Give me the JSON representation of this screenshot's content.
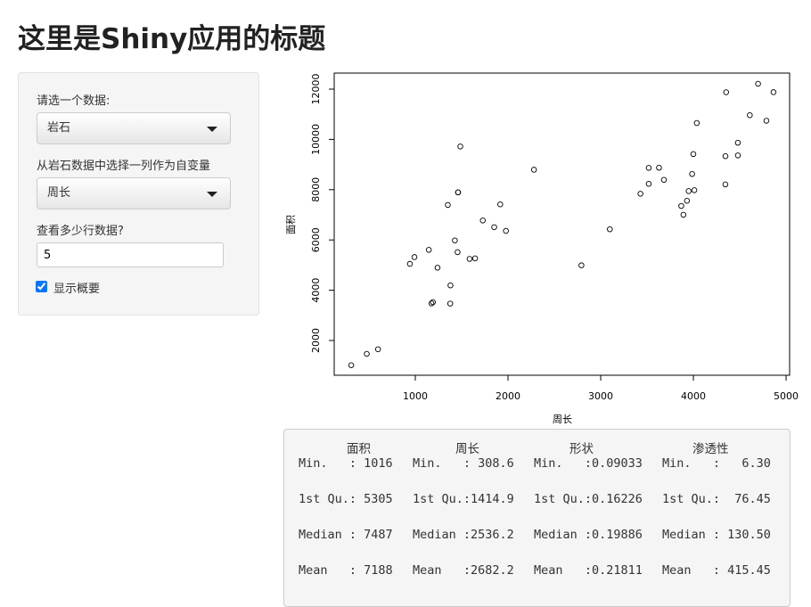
{
  "page": {
    "title": "这里是Shiny应用的标题"
  },
  "sidebar": {
    "dataset_label": "请选一个数据:",
    "dataset_value": "岩石",
    "column_label": "从岩石数据中选择一列作为自变量",
    "column_value": "周长",
    "rows_label": "查看多少行数据?",
    "rows_value": "5",
    "summary_label": "显示概要",
    "summary_checked": true
  },
  "chart_data": {
    "type": "scatter",
    "xlabel": "周长",
    "ylabel": "面积",
    "color": "#000000",
    "x": [
      2791.9,
      3892.6,
      3930.66,
      3869.32,
      3948.54,
      4010.15,
      4345.75,
      4344.75,
      3682.04,
      3098.65,
      4480.05,
      3986.24,
      4036.54,
      3518.04,
      3999.37,
      3629.07,
      4608.66,
      4787.62,
      4864.22,
      4479.41,
      3428.74,
      4353.14,
      4697.65,
      3518.44,
      1977.39,
      1379.35,
      1916.24,
      1585.42,
      1851.21,
      1239.66,
      1728.14,
      1461.06,
      1426.76,
      990.388,
      1350.76,
      1461.06,
      1376.7,
      476.322,
      1189.46,
      1644.96,
      941.543,
      308.642,
      1145.69,
      2280.49,
      1174.11,
      597.808,
      1455.88,
      1485.58
    ],
    "values": [
      4990,
      7002,
      7558,
      7352,
      7943,
      7979,
      9333,
      8209,
      8393,
      6425,
      9364,
      8624,
      10651,
      8868,
      9417,
      8874,
      10962,
      10743,
      11878,
      9867,
      7838,
      11876,
      12212,
      8233,
      6360,
      4193,
      7416,
      5246,
      6509,
      4895,
      6775,
      7894,
      5980,
      5318,
      7392,
      7894,
      3469,
      1468,
      3524,
      5267,
      5048,
      1016,
      5605,
      8793,
      3475,
      1651,
      5514,
      9718
    ],
    "xlim": [
      125,
      5038
    ],
    "ylim": [
      617,
      12638
    ],
    "xticks": [
      1000,
      2000,
      3000,
      4000,
      5000
    ],
    "yticks": [
      2000,
      4000,
      6000,
      8000,
      10000,
      12000
    ]
  },
  "summary": {
    "headers": [
      "面积",
      "周长",
      "形状",
      "渗透性"
    ],
    "rows": [
      [
        "Min.   : 1016",
        "Min.   : 308.6",
        "Min.   :0.09033",
        "Min.   :   6.30"
      ],
      [
        "1st Qu.: 5305",
        "1st Qu.:1414.9",
        "1st Qu.:0.16226",
        "1st Qu.:  76.45"
      ],
      [
        "Median : 7487",
        "Median :2536.2",
        "Median :0.19886",
        "Median : 130.50"
      ],
      [
        "Mean   : 7188",
        "Mean   :2682.2",
        "Mean   :0.21811",
        "Mean   : 415.45"
      ]
    ]
  }
}
